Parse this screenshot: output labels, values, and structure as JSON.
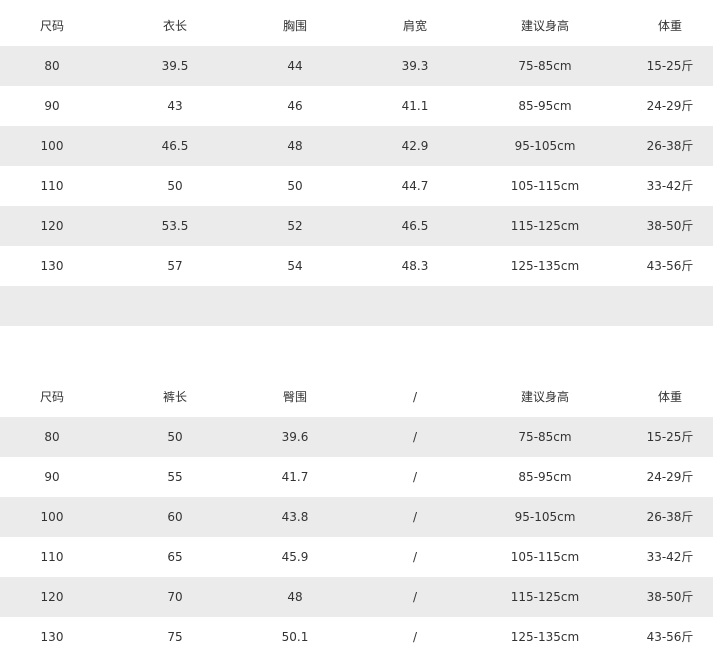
{
  "tables": [
    {
      "header": [
        "尺码",
        "衣长",
        "胸围",
        "肩宽",
        "建议身高",
        "体重"
      ],
      "rows": [
        [
          "80",
          "39.5",
          "44",
          "39.3",
          "75-85cm",
          "15-25斤"
        ],
        [
          "90",
          "43",
          "46",
          "41.1",
          "85-95cm",
          "24-29斤"
        ],
        [
          "100",
          "46.5",
          "48",
          "42.9",
          "95-105cm",
          "26-38斤"
        ],
        [
          "110",
          "50",
          "50",
          "44.7",
          "105-115cm",
          "33-42斤"
        ],
        [
          "120",
          "53.5",
          "52",
          "46.5",
          "115-125cm",
          "38-50斤"
        ],
        [
          "130",
          "57",
          "54",
          "48.3",
          "125-135cm",
          "43-56斤"
        ]
      ]
    },
    {
      "header": [
        "尺码",
        "裤长",
        "臀围",
        "/",
        "建议身高",
        "体重"
      ],
      "rows": [
        [
          "80",
          "50",
          "39.6",
          "/",
          "75-85cm",
          "15-25斤"
        ],
        [
          "90",
          "55",
          "41.7",
          "/",
          "85-95cm",
          "24-29斤"
        ],
        [
          "100",
          "60",
          "43.8",
          "/",
          "95-105cm",
          "26-38斤"
        ],
        [
          "110",
          "65",
          "45.9",
          "/",
          "105-115cm",
          "33-42斤"
        ],
        [
          "120",
          "70",
          "48",
          "/",
          "115-125cm",
          "38-50斤"
        ],
        [
          "130",
          "75",
          "50.1",
          "/",
          "125-135cm",
          "43-56斤"
        ]
      ]
    }
  ]
}
